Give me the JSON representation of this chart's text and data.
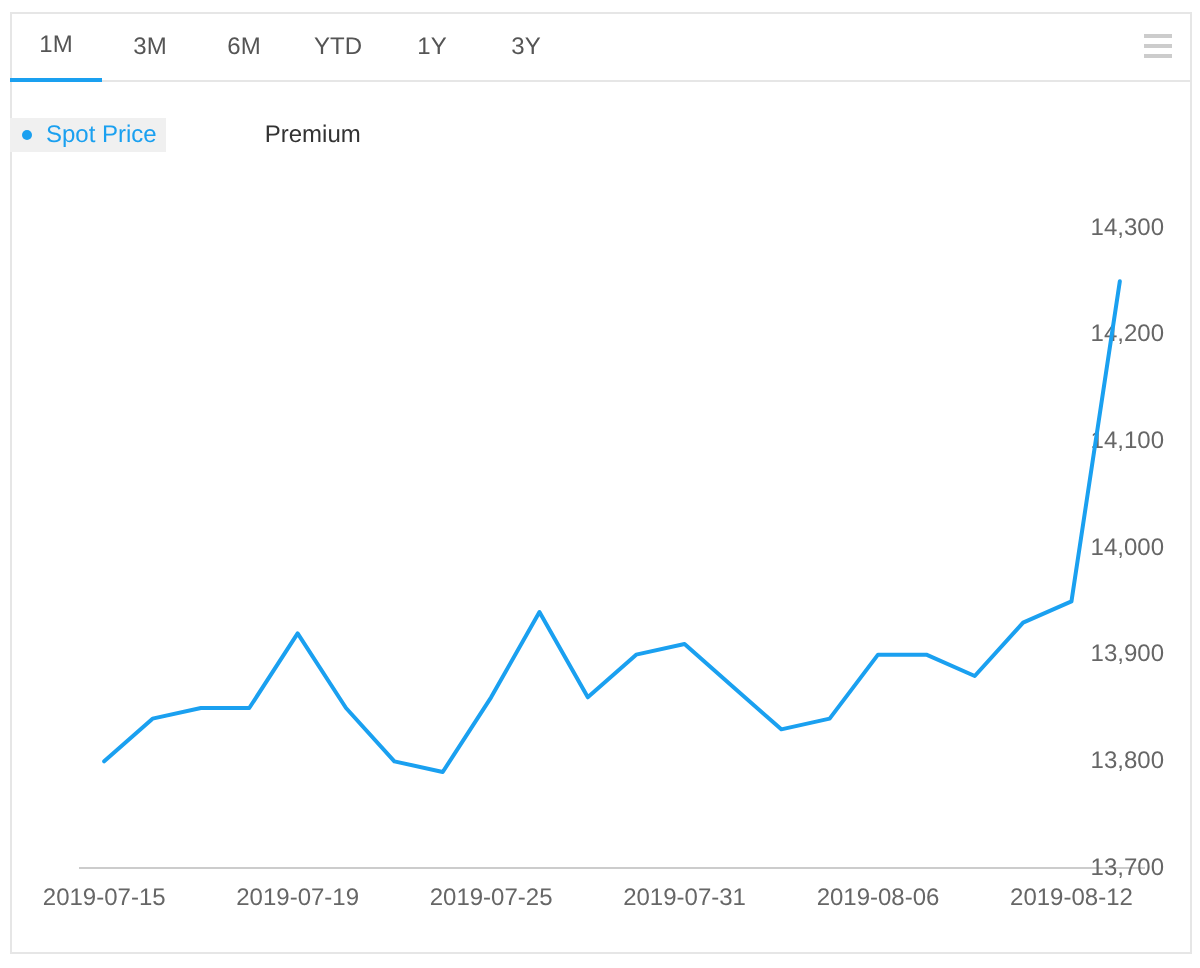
{
  "chart_data": {
    "type": "line",
    "categories": [
      "2019-07-15",
      null,
      null,
      null,
      "2019-07-19",
      null,
      null,
      null,
      "2019-07-25",
      null,
      null,
      null,
      "2019-07-31",
      null,
      null,
      null,
      "2019-08-06",
      null,
      null,
      null,
      "2019-08-12",
      null
    ],
    "series": [
      {
        "name": "Spot Price",
        "color": "#1aa0f0",
        "values": [
          13800,
          13840,
          13850,
          13850,
          13920,
          13850,
          13800,
          13790,
          13860,
          13940,
          13860,
          13900,
          13910,
          13870,
          13830,
          13840,
          13900,
          13900,
          13880,
          13930,
          13950,
          14250
        ]
      },
      {
        "name": "Premium",
        "values": [
          null,
          null,
          null,
          null,
          null,
          null,
          null,
          null,
          null,
          null,
          null,
          null,
          null,
          null,
          null,
          null,
          null,
          null,
          null,
          null,
          null,
          null
        ]
      }
    ],
    "ylim": [
      13700,
      14300
    ],
    "yticks": [
      {
        "value": 13700,
        "label": "13,700"
      },
      {
        "value": 13800,
        "label": "13,800"
      },
      {
        "value": 13900,
        "label": "13,900"
      },
      {
        "value": 14000,
        "label": "14,000"
      },
      {
        "value": 14100,
        "label": "14,100"
      },
      {
        "value": 14200,
        "label": "14,200"
      },
      {
        "value": 14300,
        "label": "14,300"
      }
    ],
    "grid": false,
    "legend": "top left",
    "marker": "none",
    "line_style": "solid",
    "annotations": [
      "1M",
      "3M",
      "6M",
      "YTD",
      "1Y",
      "3Y"
    ]
  }
}
